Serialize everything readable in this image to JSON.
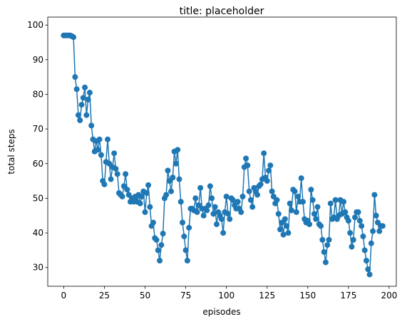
{
  "chart_data": {
    "type": "line",
    "title": "title: placeholder",
    "xlabel": "episodes",
    "ylabel": "total steps",
    "color": "#1f77b4",
    "x": [
      0,
      1,
      2,
      3,
      4,
      5,
      6,
      7,
      8,
      9,
      10,
      11,
      12,
      13,
      14,
      15,
      16,
      17,
      18,
      19,
      20,
      21,
      22,
      23,
      24,
      25,
      26,
      27,
      28,
      29,
      30,
      31,
      32,
      33,
      34,
      35,
      36,
      37,
      38,
      39,
      40,
      41,
      42,
      43,
      44,
      45,
      46,
      47,
      48,
      49,
      50,
      51,
      52,
      53,
      54,
      55,
      56,
      57,
      58,
      59,
      60,
      61,
      62,
      63,
      64,
      65,
      66,
      67,
      68,
      69,
      70,
      71,
      72,
      73,
      74,
      75,
      76,
      77,
      78,
      79,
      80,
      81,
      82,
      83,
      84,
      85,
      86,
      87,
      88,
      89,
      90,
      91,
      92,
      93,
      94,
      95,
      96,
      97,
      98,
      99,
      100,
      101,
      102,
      103,
      104,
      105,
      106,
      107,
      108,
      109,
      110,
      111,
      112,
      113,
      114,
      115,
      116,
      117,
      118,
      119,
      120,
      121,
      122,
      123,
      124,
      125,
      126,
      127,
      128,
      129,
      130,
      131,
      132,
      133,
      134,
      135,
      136,
      137,
      138,
      139,
      140,
      141,
      142,
      143,
      144,
      145,
      146,
      147,
      148,
      149,
      150,
      151,
      152,
      153,
      154,
      155,
      156,
      157,
      158,
      159,
      160,
      161,
      162,
      163,
      164,
      165,
      166,
      167,
      168,
      169,
      170,
      171,
      172,
      173,
      174,
      175,
      176,
      177,
      178,
      179,
      180,
      181,
      182,
      183,
      184,
      185,
      186,
      187,
      188,
      189,
      190,
      191,
      192,
      193,
      194,
      195,
      196
    ],
    "values": [
      97,
      97,
      97,
      97,
      97,
      96.8,
      96.5,
      85,
      81.5,
      74,
      72.5,
      77,
      79,
      82,
      74,
      78.5,
      80.5,
      71,
      67,
      63.5,
      66.5,
      64,
      67,
      62.5,
      55,
      54,
      60.5,
      67,
      60,
      55.5,
      59,
      63,
      58.5,
      57,
      51.5,
      51,
      50.5,
      53.5,
      57,
      52.5,
      51,
      49,
      50,
      49,
      50.5,
      49,
      51,
      48.5,
      50.5,
      52,
      46,
      51.5,
      53.8,
      47.5,
      42,
      43,
      38.5,
      38,
      35,
      32,
      36.5,
      39.8,
      50,
      51,
      58,
      55,
      52,
      56,
      63.5,
      60,
      64,
      55.5,
      49,
      43,
      39,
      35,
      32,
      41.5,
      47,
      47,
      46.5,
      50,
      46,
      48,
      53,
      47,
      45,
      47,
      46.5,
      48,
      53.5,
      50,
      45.5,
      47.5,
      42.5,
      46,
      45,
      44,
      40,
      46,
      50.5,
      45.5,
      44,
      50,
      49.5,
      48,
      47,
      49,
      47,
      46,
      50.5,
      59,
      61.5,
      59.5,
      52,
      49.5,
      47.5,
      53,
      52,
      51,
      53.5,
      54,
      55.5,
      63,
      56,
      55,
      58,
      59.5,
      52,
      50.5,
      48.5,
      49.5,
      45.5,
      41,
      43,
      39.5,
      44,
      42,
      40,
      48.5,
      46.5,
      52.5,
      52,
      46,
      50.5,
      49,
      55.8,
      49,
      44,
      43,
      43.5,
      42.5,
      52.5,
      49.5,
      45.5,
      44,
      47.5,
      42.5,
      42,
      38,
      34.5,
      31.5,
      36.5,
      38,
      48.5,
      44,
      44.5,
      49.5,
      44,
      45,
      49.5,
      45.5,
      49,
      46,
      44.5,
      43.5,
      40,
      36,
      38,
      44.5,
      46,
      46,
      43.5,
      42,
      39,
      35,
      32,
      29.5,
      28,
      37,
      40.5,
      51,
      45,
      43,
      40.5,
      42,
      42
    ],
    "xlim": [
      -9.8,
      204.4
    ],
    "ylim": [
      24.6,
      102.3
    ],
    "xticks": [
      0,
      25,
      50,
      75,
      100,
      125,
      150,
      175,
      200
    ],
    "yticks": [
      30,
      40,
      50,
      60,
      70,
      80,
      90,
      100
    ]
  }
}
